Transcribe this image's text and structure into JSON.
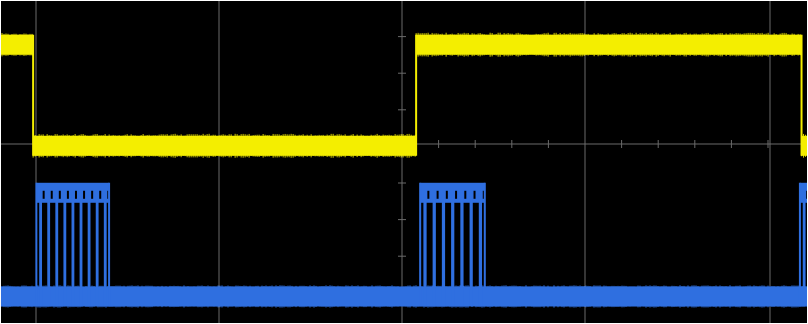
{
  "display": {
    "background": "#000000",
    "border": "#ffffff",
    "grid_color": "#6a6a6a",
    "divisions_x": 8,
    "divisions_y": 5,
    "minor_ticks_per_div": 5
  },
  "channels": [
    {
      "name": "channel-1",
      "color": "#f4ee00",
      "shape": "digital-level",
      "high_level": 0.862,
      "low_level": 0.55,
      "noise": 0.028,
      "transitions": [
        {
          "at": 0.041,
          "to": "low"
        },
        {
          "at": 0.515,
          "to": "high"
        },
        {
          "at": 0.992,
          "to": "low"
        }
      ],
      "initial": "high"
    },
    {
      "name": "channel-2",
      "color": "#2f6fe0",
      "shape": "burst-idle",
      "idle_level": 0.085,
      "burst_level": 0.405,
      "noise": 0.03,
      "bursts": [
        {
          "start": 0.045,
          "end": 0.135,
          "pulses": 9
        },
        {
          "start": 0.52,
          "end": 0.6,
          "pulses": 7
        },
        {
          "start": 0.99,
          "end": 1.0,
          "pulses": 1
        }
      ]
    }
  ]
}
